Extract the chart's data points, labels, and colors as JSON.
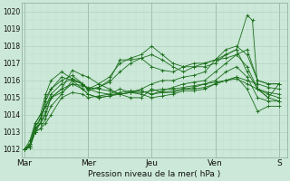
{
  "background_color": "#cce8d8",
  "plot_bg_color": "#cce8d8",
  "grid_major_color": "#aaccbb",
  "grid_minor_color": "#bbddd0",
  "line_color": "#1a6e1a",
  "marker_color": "#1a6e1a",
  "xlabel_text": "Pression niveau de la mer( hPa )",
  "ylim": [
    1011.5,
    1020.5
  ],
  "yticks": [
    1012,
    1013,
    1014,
    1015,
    1016,
    1017,
    1018,
    1019,
    1020
  ],
  "day_labels": [
    "Mar",
    "Mer",
    "Jeu",
    "Ven",
    "S"
  ],
  "day_positions": [
    0,
    24,
    48,
    72,
    96
  ],
  "xlim": [
    -1,
    99
  ],
  "series": [
    [
      0,
      1012.0,
      2,
      1012.5,
      4,
      1013.5,
      6,
      1014.0,
      8,
      1014.5,
      10,
      1015.0,
      14,
      1015.3,
      18,
      1015.8,
      22,
      1015.5,
      24,
      1015.2,
      28,
      1015.0,
      32,
      1015.1,
      36,
      1015.2,
      40,
      1015.3,
      44,
      1015.3,
      48,
      1015.4,
      52,
      1015.5,
      56,
      1015.5,
      60,
      1015.6,
      64,
      1015.7,
      68,
      1015.8,
      72,
      1015.9,
      76,
      1016.0,
      80,
      1016.1,
      84,
      1015.8,
      88,
      1015.5,
      92,
      1015.3,
      96,
      1015.2
    ],
    [
      0,
      1012.0,
      2,
      1012.3,
      4,
      1013.0,
      6,
      1013.8,
      8,
      1014.5,
      10,
      1015.2,
      14,
      1015.8,
      18,
      1016.1,
      22,
      1015.8,
      24,
      1015.5,
      28,
      1015.6,
      32,
      1015.9,
      36,
      1016.5,
      40,
      1017.0,
      44,
      1017.3,
      48,
      1017.5,
      52,
      1017.2,
      56,
      1016.8,
      60,
      1016.5,
      64,
      1016.8,
      68,
      1017.0,
      72,
      1017.2,
      76,
      1017.5,
      80,
      1017.8,
      84,
      1016.5,
      88,
      1015.5,
      92,
      1015.0,
      96,
      1015.8
    ],
    [
      0,
      1012.0,
      2,
      1012.2,
      4,
      1013.0,
      6,
      1013.5,
      8,
      1015.0,
      10,
      1015.5,
      14,
      1016.0,
      18,
      1016.3,
      22,
      1015.8,
      24,
      1015.5,
      28,
      1015.8,
      32,
      1016.2,
      36,
      1017.0,
      40,
      1017.3,
      44,
      1017.5,
      48,
      1018.0,
      52,
      1017.5,
      56,
      1017.0,
      60,
      1016.8,
      64,
      1016.8,
      68,
      1016.8,
      72,
      1017.0,
      76,
      1017.5,
      80,
      1017.8,
      84,
      1019.8,
      86,
      1019.5,
      88,
      1015.5,
      92,
      1015.0,
      96,
      1014.8
    ],
    [
      0,
      1012.0,
      2,
      1012.2,
      4,
      1013.3,
      6,
      1013.8,
      8,
      1014.8,
      10,
      1015.5,
      14,
      1016.2,
      18,
      1016.0,
      22,
      1015.5,
      24,
      1015.2,
      28,
      1015.0,
      32,
      1015.1,
      36,
      1015.3,
      40,
      1015.4,
      44,
      1015.4,
      48,
      1015.2,
      52,
      1015.3,
      56,
      1015.4,
      60,
      1015.5,
      64,
      1015.6,
      68,
      1015.8,
      72,
      1016.0,
      76,
      1016.5,
      80,
      1016.8,
      84,
      1016.2,
      88,
      1015.0,
      92,
      1014.8,
      96,
      1014.8
    ],
    [
      0,
      1012.0,
      2,
      1012.3,
      4,
      1013.5,
      6,
      1014.0,
      8,
      1015.2,
      10,
      1016.0,
      14,
      1016.5,
      18,
      1016.1,
      22,
      1015.8,
      24,
      1015.5,
      28,
      1015.3,
      32,
      1015.2,
      36,
      1015.2,
      40,
      1015.3,
      44,
      1015.4,
      48,
      1015.2,
      52,
      1015.4,
      56,
      1015.6,
      60,
      1015.8,
      64,
      1015.9,
      68,
      1016.0,
      72,
      1016.5,
      76,
      1017.0,
      80,
      1017.5,
      84,
      1016.8,
      88,
      1015.5,
      92,
      1015.2,
      96,
      1015.0
    ],
    [
      0,
      1012.0,
      2,
      1012.1,
      4,
      1013.2,
      6,
      1013.5,
      8,
      1014.2,
      10,
      1015.0,
      14,
      1015.5,
      18,
      1016.6,
      22,
      1016.3,
      24,
      1016.2,
      28,
      1015.8,
      32,
      1015.5,
      36,
      1015.2,
      40,
      1015.0,
      44,
      1015.0,
      48,
      1015.5,
      52,
      1015.3,
      56,
      1015.3,
      60,
      1015.5,
      64,
      1015.5,
      68,
      1015.6,
      72,
      1015.8,
      76,
      1016.0,
      80,
      1016.2,
      84,
      1015.5,
      88,
      1014.2,
      92,
      1014.5,
      96,
      1014.5
    ],
    [
      0,
      1012.0,
      2,
      1012.1,
      4,
      1013.0,
      6,
      1013.2,
      8,
      1013.5,
      10,
      1014.0,
      14,
      1015.0,
      18,
      1015.3,
      22,
      1015.2,
      24,
      1015.0,
      28,
      1015.1,
      32,
      1015.2,
      36,
      1015.5,
      40,
      1015.3,
      44,
      1015.2,
      48,
      1015.0,
      52,
      1015.1,
      56,
      1015.2,
      60,
      1015.4,
      64,
      1015.4,
      68,
      1015.5,
      72,
      1015.8,
      76,
      1016.0,
      80,
      1016.2,
      84,
      1016.0,
      88,
      1015.8,
      92,
      1015.6,
      96,
      1015.5
    ],
    [
      0,
      1012.0,
      2,
      1012.2,
      4,
      1013.2,
      6,
      1013.5,
      8,
      1014.0,
      10,
      1015.0,
      14,
      1015.5,
      18,
      1015.8,
      22,
      1015.7,
      24,
      1015.6,
      28,
      1015.5,
      32,
      1015.4,
      36,
      1015.2,
      40,
      1015.3,
      44,
      1015.5,
      48,
      1015.8,
      52,
      1016.0,
      56,
      1016.0,
      60,
      1016.2,
      64,
      1016.3,
      68,
      1016.5,
      72,
      1017.2,
      76,
      1017.3,
      80,
      1017.5,
      84,
      1017.8,
      88,
      1016.0,
      92,
      1015.8,
      96,
      1015.8
    ],
    [
      0,
      1012.0,
      2,
      1012.1,
      4,
      1013.0,
      6,
      1013.2,
      8,
      1013.8,
      10,
      1014.5,
      14,
      1015.2,
      18,
      1016.0,
      22,
      1015.8,
      24,
      1015.4,
      28,
      1015.6,
      32,
      1016.0,
      36,
      1017.2,
      40,
      1017.2,
      44,
      1017.3,
      48,
      1016.8,
      52,
      1016.6,
      56,
      1016.5,
      60,
      1016.8,
      64,
      1017.0,
      68,
      1017.0,
      72,
      1017.2,
      76,
      1017.8,
      80,
      1018.0,
      84,
      1017.5,
      88,
      1016.0,
      92,
      1015.8,
      96,
      1015.8
    ]
  ]
}
